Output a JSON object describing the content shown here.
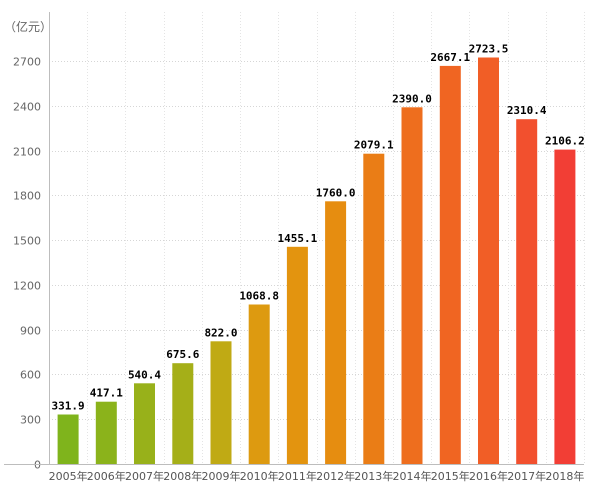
{
  "chart_data": {
    "type": "bar",
    "unit_label": "（亿元）",
    "categories": [
      "2005年",
      "2006年",
      "2007年",
      "2008年",
      "2009年",
      "2010年",
      "2011年",
      "2012年",
      "2013年",
      "2014年",
      "2015年",
      "2016年",
      "2017年",
      "2018年"
    ],
    "values": [
      331.9,
      417.1,
      540.4,
      675.6,
      822.0,
      1068.8,
      1455.1,
      1760.0,
      2079.1,
      2390.0,
      2667.1,
      2723.5,
      2310.4,
      2106.2
    ],
    "value_labels": [
      "331.9",
      "417.1",
      "540.4",
      "675.6",
      "822.0",
      "1068.8",
      "1455.1",
      "1760.0",
      "2079.1",
      "2390.0",
      "2667.1",
      "2723.5",
      "2310.4",
      "2106.2"
    ],
    "yticks": [
      0,
      300,
      600,
      900,
      1200,
      1500,
      1800,
      2100,
      2400,
      2700
    ],
    "ylim": [
      0,
      2700
    ],
    "grid": true,
    "legend": "none",
    "colors": [
      "#7fb41c",
      "#8bb31b",
      "#98b11a",
      "#a5af18",
      "#c0aa14",
      "#dd9a10",
      "#e3940f",
      "#e68d10",
      "#ea7d16",
      "#ee6e1e",
      "#f06522",
      "#f15e26",
      "#f2502e",
      "#f23e35"
    ]
  }
}
